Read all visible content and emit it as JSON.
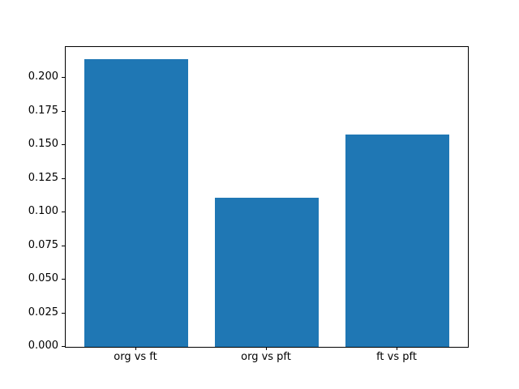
{
  "chart_data": {
    "type": "bar",
    "categories": [
      "org vs ft",
      "org vs pft",
      "ft vs pft"
    ],
    "values": [
      0.214,
      0.111,
      0.158
    ],
    "title": "",
    "xlabel": "",
    "ylabel": "",
    "ylim": [
      0,
      0.223
    ],
    "xlim_units": [
      -0.54,
      2.54
    ],
    "bar_width_units": 0.8,
    "yticks": [
      0,
      0.025,
      0.05,
      0.075,
      0.1,
      0.125,
      0.15,
      0.175,
      0.2
    ],
    "ytick_labels": [
      "0.000",
      "0.025",
      "0.050",
      "0.075",
      "0.100",
      "0.125",
      "0.150",
      "0.175",
      "0.200"
    ],
    "grid": false,
    "legend": false,
    "bar_color": "#1f77b4",
    "spine_color": "#000000",
    "background_color": "#ffffff",
    "text_color": "#000000"
  }
}
